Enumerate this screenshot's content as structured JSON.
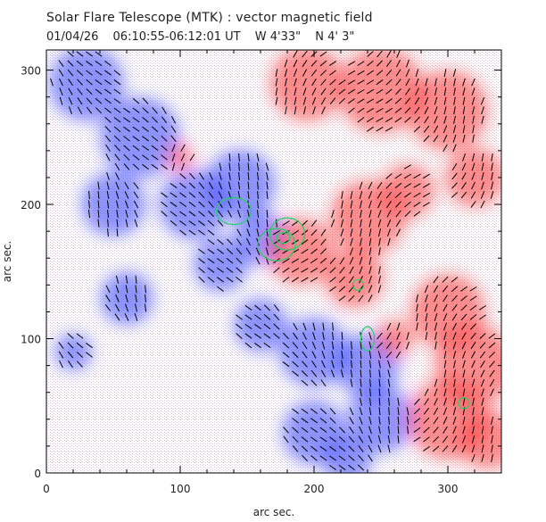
{
  "chart_data": {
    "type": "heatmap",
    "title": "Solar Flare Telescope (MTK) : vector magnetic field",
    "date": "01/04/26",
    "time_range": "06:10:55-06:12:01 UT",
    "position_w": "W 4'33\"",
    "position_n": "N 4' 3\"",
    "xlabel": "arc sec.",
    "ylabel": "arc sec.",
    "xlim": [
      0,
      340
    ],
    "ylim": [
      0,
      315
    ],
    "xticks": [
      0,
      100,
      200,
      300
    ],
    "yticks": [
      0,
      100,
      200,
      300
    ],
    "colors": {
      "positive_polarity": "#ff2020",
      "negative_polarity": "#2030ff",
      "contour": "#20d060",
      "vectors": "#000000",
      "frame": "#000000"
    },
    "positive_regions": [
      {
        "cx": 195,
        "cy": 290,
        "r": 28
      },
      {
        "cx": 250,
        "cy": 285,
        "r": 32
      },
      {
        "cx": 300,
        "cy": 270,
        "r": 30
      },
      {
        "cx": 320,
        "cy": 220,
        "r": 22
      },
      {
        "cx": 100,
        "cy": 235,
        "r": 10
      },
      {
        "cx": 190,
        "cy": 165,
        "r": 25
      },
      {
        "cx": 240,
        "cy": 190,
        "r": 28
      },
      {
        "cx": 230,
        "cy": 145,
        "r": 22
      },
      {
        "cx": 270,
        "cy": 210,
        "r": 20
      },
      {
        "cx": 300,
        "cy": 120,
        "r": 28
      },
      {
        "cx": 320,
        "cy": 80,
        "r": 30
      },
      {
        "cx": 300,
        "cy": 40,
        "r": 30
      },
      {
        "cx": 330,
        "cy": 25,
        "r": 22
      },
      {
        "cx": 260,
        "cy": 100,
        "r": 14
      }
    ],
    "negative_regions": [
      {
        "cx": 30,
        "cy": 290,
        "r": 28
      },
      {
        "cx": 70,
        "cy": 250,
        "r": 30
      },
      {
        "cx": 50,
        "cy": 200,
        "r": 24
      },
      {
        "cx": 110,
        "cy": 200,
        "r": 26
      },
      {
        "cx": 145,
        "cy": 215,
        "r": 26
      },
      {
        "cx": 160,
        "cy": 175,
        "r": 20
      },
      {
        "cx": 130,
        "cy": 155,
        "r": 20
      },
      {
        "cx": 60,
        "cy": 130,
        "r": 20
      },
      {
        "cx": 160,
        "cy": 110,
        "r": 20
      },
      {
        "cx": 200,
        "cy": 90,
        "r": 26
      },
      {
        "cx": 240,
        "cy": 80,
        "r": 24
      },
      {
        "cx": 250,
        "cy": 40,
        "r": 25
      },
      {
        "cx": 200,
        "cy": 30,
        "r": 24
      },
      {
        "cx": 225,
        "cy": 10,
        "r": 18
      },
      {
        "cx": 20,
        "cy": 90,
        "r": 14
      }
    ],
    "contours": [
      {
        "cx": 140,
        "cy": 195,
        "rx": 13,
        "ry": 10
      },
      {
        "cx": 172,
        "cy": 170,
        "rx": 14,
        "ry": 12
      },
      {
        "cx": 180,
        "cy": 178,
        "rx": 13,
        "ry": 12
      },
      {
        "cx": 177,
        "cy": 175,
        "rx": 5,
        "ry": 4
      },
      {
        "cx": 233,
        "cy": 140,
        "rx": 4,
        "ry": 4
      },
      {
        "cx": 240,
        "cy": 100,
        "rx": 5,
        "ry": 9
      },
      {
        "cx": 312,
        "cy": 52,
        "rx": 4,
        "ry": 4
      }
    ]
  }
}
